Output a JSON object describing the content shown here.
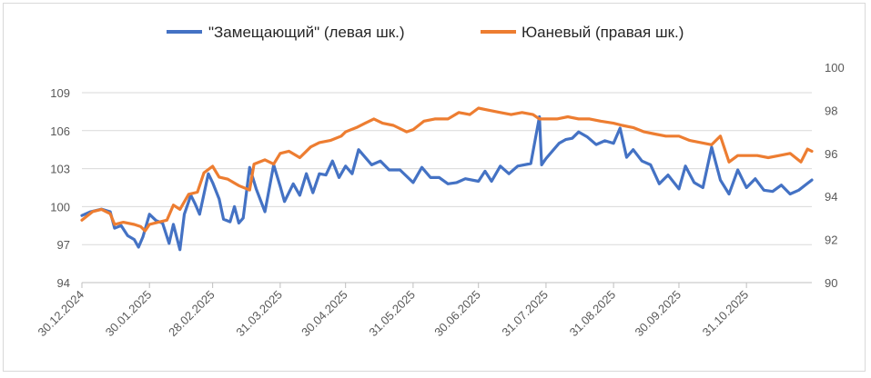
{
  "chart_data": {
    "type": "line",
    "legend": {
      "placement": "top"
    },
    "grid": {
      "horizontal": true,
      "vertical": false
    },
    "x_tick_labels": [
      "30.12.2024",
      "30.01.2025",
      "28.02.2025",
      "31.03.2025",
      "30.04.2025",
      "31.05.2025",
      "30.06.2025",
      "31.07.2025",
      "31.08.2025",
      "30.09.2025",
      "31.10.2025"
    ],
    "x_range": [
      "30.12.2024",
      "30.11.2025"
    ],
    "y_left": {
      "lim": [
        94,
        109
      ],
      "ticks": [
        "94",
        "97",
        "100",
        "103",
        "106",
        "109"
      ]
    },
    "y_right": {
      "lim": [
        90,
        100
      ],
      "ticks": [
        "90",
        "92",
        "94",
        "96",
        "98",
        "100"
      ]
    },
    "series": [
      {
        "name": "\"Замещающий\" (левая шк.)",
        "axis": "left",
        "color": "#4472C4",
        "points": [
          [
            "30.12.2024",
            99.3
          ],
          [
            "03.01.2025",
            99.6
          ],
          [
            "08.01.2025",
            99.8
          ],
          [
            "12.01.2025",
            99.6
          ],
          [
            "14.01.2025",
            98.3
          ],
          [
            "17.01.2025",
            98.5
          ],
          [
            "20.01.2025",
            97.7
          ],
          [
            "23.01.2025",
            97.4
          ],
          [
            "25.01.2025",
            96.8
          ],
          [
            "27.01.2025",
            97.6
          ],
          [
            "30.01.2025",
            99.4
          ],
          [
            "02.02.2025",
            98.9
          ],
          [
            "05.02.2025",
            98.7
          ],
          [
            "08.02.2025",
            97.1
          ],
          [
            "10.02.2025",
            98.6
          ],
          [
            "13.02.2025",
            96.6
          ],
          [
            "15.02.2025",
            99.4
          ],
          [
            "18.02.2025",
            100.9
          ],
          [
            "20.02.2025",
            100.2
          ],
          [
            "22.02.2025",
            99.4
          ],
          [
            "24.02.2025",
            101.0
          ],
          [
            "26.02.2025",
            102.6
          ],
          [
            "28.02.2025",
            101.9
          ],
          [
            "03.03.2025",
            100.6
          ],
          [
            "05.03.2025",
            99.0
          ],
          [
            "08.03.2025",
            98.8
          ],
          [
            "10.03.2025",
            100.0
          ],
          [
            "12.03.2025",
            98.7
          ],
          [
            "14.03.2025",
            99.1
          ],
          [
            "17.03.2025",
            103.1
          ],
          [
            "20.03.2025",
            101.4
          ],
          [
            "24.03.2025",
            99.6
          ],
          [
            "28.03.2025",
            103.3
          ],
          [
            "31.03.2025",
            101.6
          ],
          [
            "02.04.2025",
            100.4
          ],
          [
            "06.04.2025",
            101.8
          ],
          [
            "09.04.2025",
            100.9
          ],
          [
            "12.04.2025",
            102.6
          ],
          [
            "15.04.2025",
            101.1
          ],
          [
            "18.04.2025",
            102.6
          ],
          [
            "21.04.2025",
            102.5
          ],
          [
            "24.04.2025",
            103.6
          ],
          [
            "27.04.2025",
            102.3
          ],
          [
            "30.04.2025",
            103.2
          ],
          [
            "03.05.2025",
            102.6
          ],
          [
            "06.05.2025",
            104.5
          ],
          [
            "09.05.2025",
            103.9
          ],
          [
            "12.05.2025",
            103.3
          ],
          [
            "16.05.2025",
            103.6
          ],
          [
            "20.05.2025",
            102.9
          ],
          [
            "25.05.2025",
            102.9
          ],
          [
            "31.05.2025",
            101.9
          ],
          [
            "04.06.2025",
            103.1
          ],
          [
            "08.06.2025",
            102.3
          ],
          [
            "12.06.2025",
            102.3
          ],
          [
            "16.06.2025",
            101.8
          ],
          [
            "20.06.2025",
            101.9
          ],
          [
            "24.06.2025",
            102.2
          ],
          [
            "30.06.2025",
            102.0
          ],
          [
            "03.07.2025",
            102.8
          ],
          [
            "06.07.2025",
            102.0
          ],
          [
            "10.07.2025",
            103.2
          ],
          [
            "14.07.2025",
            102.6
          ],
          [
            "18.07.2025",
            103.2
          ],
          [
            "24.07.2025",
            103.4
          ],
          [
            "28.07.2025",
            107.1
          ],
          [
            "29.07.2025",
            103.3
          ],
          [
            "31.07.2025",
            103.8
          ],
          [
            "03.08.2025",
            104.4
          ],
          [
            "06.08.2025",
            105.0
          ],
          [
            "09.08.2025",
            105.3
          ],
          [
            "12.08.2025",
            105.4
          ],
          [
            "15.08.2025",
            105.9
          ],
          [
            "19.08.2025",
            105.5
          ],
          [
            "23.08.2025",
            104.9
          ],
          [
            "27.08.2025",
            105.2
          ],
          [
            "31.08.2025",
            105.0
          ],
          [
            "03.09.2025",
            106.2
          ],
          [
            "06.09.2025",
            103.9
          ],
          [
            "09.09.2025",
            104.5
          ],
          [
            "13.09.2025",
            103.6
          ],
          [
            "17.09.2025",
            103.3
          ],
          [
            "21.09.2025",
            101.8
          ],
          [
            "25.09.2025",
            102.5
          ],
          [
            "30.09.2025",
            101.4
          ],
          [
            "03.10.2025",
            103.2
          ],
          [
            "07.10.2025",
            101.9
          ],
          [
            "11.10.2025",
            101.5
          ],
          [
            "15.10.2025",
            104.7
          ],
          [
            "19.10.2025",
            102.1
          ],
          [
            "23.10.2025",
            101.0
          ],
          [
            "27.10.2025",
            102.9
          ],
          [
            "31.10.2025",
            101.5
          ],
          [
            "04.11.2025",
            102.2
          ],
          [
            "08.11.2025",
            101.3
          ],
          [
            "12.11.2025",
            101.2
          ],
          [
            "16.11.2025",
            101.7
          ],
          [
            "20.11.2025",
            101.0
          ],
          [
            "24.11.2025",
            101.3
          ],
          [
            "30.11.2025",
            102.1
          ]
        ]
      },
      {
        "name": "Юаневый (правая шк.)",
        "axis": "right",
        "color": "#ED7D31",
        "points": [
          [
            "30.12.2024",
            92.9
          ],
          [
            "04.01.2025",
            93.3
          ],
          [
            "08.01.2025",
            93.4
          ],
          [
            "12.01.2025",
            93.2
          ],
          [
            "14.01.2025",
            92.7
          ],
          [
            "18.01.2025",
            92.8
          ],
          [
            "23.01.2025",
            92.7
          ],
          [
            "26.01.2025",
            92.6
          ],
          [
            "28.01.2025",
            92.4
          ],
          [
            "30.01.2025",
            92.7
          ],
          [
            "03.02.2025",
            92.8
          ],
          [
            "07.02.2025",
            92.9
          ],
          [
            "10.02.2025",
            93.6
          ],
          [
            "13.02.2025",
            93.4
          ],
          [
            "17.02.2025",
            94.1
          ],
          [
            "21.02.2025",
            94.2
          ],
          [
            "24.02.2025",
            95.1
          ],
          [
            "28.02.2025",
            95.4
          ],
          [
            "03.03.2025",
            94.9
          ],
          [
            "07.03.2025",
            94.8
          ],
          [
            "12.03.2025",
            94.5
          ],
          [
            "17.03.2025",
            94.3
          ],
          [
            "19.03.2025",
            95.5
          ],
          [
            "24.03.2025",
            95.7
          ],
          [
            "28.03.2025",
            95.5
          ],
          [
            "31.03.2025",
            96.0
          ],
          [
            "04.04.2025",
            96.1
          ],
          [
            "09.04.2025",
            95.8
          ],
          [
            "14.04.2025",
            96.3
          ],
          [
            "18.04.2025",
            96.5
          ],
          [
            "23.04.2025",
            96.6
          ],
          [
            "28.04.2025",
            96.8
          ],
          [
            "30.04.2025",
            97.0
          ],
          [
            "05.05.2025",
            97.2
          ],
          [
            "09.05.2025",
            97.4
          ],
          [
            "13.05.2025",
            97.6
          ],
          [
            "17.05.2025",
            97.4
          ],
          [
            "22.05.2025",
            97.3
          ],
          [
            "28.05.2025",
            97.0
          ],
          [
            "31.05.2025",
            97.1
          ],
          [
            "05.06.2025",
            97.5
          ],
          [
            "10.06.2025",
            97.6
          ],
          [
            "16.06.2025",
            97.6
          ],
          [
            "21.06.2025",
            97.9
          ],
          [
            "26.06.2025",
            97.8
          ],
          [
            "30.06.2025",
            98.1
          ],
          [
            "05.07.2025",
            98.0
          ],
          [
            "10.07.2025",
            97.9
          ],
          [
            "15.07.2025",
            97.8
          ],
          [
            "20.07.2025",
            97.9
          ],
          [
            "25.07.2025",
            97.8
          ],
          [
            "28.07.2025",
            97.6
          ],
          [
            "31.07.2025",
            97.6
          ],
          [
            "05.08.2025",
            97.6
          ],
          [
            "10.08.2025",
            97.7
          ],
          [
            "15.08.2025",
            97.6
          ],
          [
            "20.08.2025",
            97.6
          ],
          [
            "25.08.2025",
            97.5
          ],
          [
            "31.08.2025",
            97.4
          ],
          [
            "04.09.2025",
            97.3
          ],
          [
            "09.09.2025",
            97.2
          ],
          [
            "14.09.2025",
            97.0
          ],
          [
            "19.09.2025",
            96.9
          ],
          [
            "24.09.2025",
            96.8
          ],
          [
            "30.09.2025",
            96.8
          ],
          [
            "05.10.2025",
            96.6
          ],
          [
            "10.10.2025",
            96.5
          ],
          [
            "15.10.2025",
            96.4
          ],
          [
            "19.10.2025",
            96.8
          ],
          [
            "23.10.2025",
            95.6
          ],
          [
            "27.10.2025",
            95.9
          ],
          [
            "31.10.2025",
            95.9
          ],
          [
            "05.11.2025",
            95.9
          ],
          [
            "10.11.2025",
            95.8
          ],
          [
            "15.11.2025",
            95.9
          ],
          [
            "20.11.2025",
            96.0
          ],
          [
            "25.11.2025",
            95.6
          ],
          [
            "28.11.2025",
            96.2
          ],
          [
            "30.11.2025",
            96.1
          ]
        ]
      }
    ]
  }
}
